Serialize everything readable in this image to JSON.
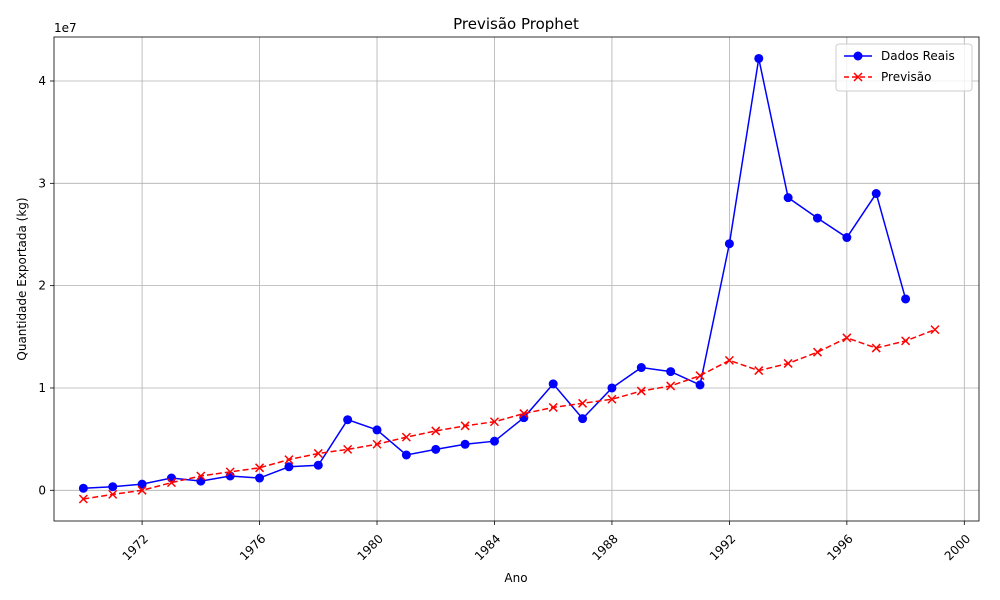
{
  "chart_data": {
    "type": "line",
    "title": "Previsão Prophet",
    "xlabel": "Ano",
    "ylabel": "Quantidade Exportada (kg)",
    "y_scale_label": "1e7",
    "x_ticks": [
      "1972",
      "1976",
      "1980",
      "1984",
      "1988",
      "1992",
      "1996",
      "2000"
    ],
    "y_ticks": [
      "0",
      "1",
      "2",
      "3",
      "4"
    ],
    "xlim": [
      1969.0,
      2000.5
    ],
    "ylim": [
      -3000000,
      44300000
    ],
    "grid": true,
    "legend_position": "top-right",
    "series": [
      {
        "name": "Dados Reais",
        "color": "#0000ff",
        "marker": "circle",
        "linestyle": "solid",
        "x": [
          1970,
          1971,
          1972,
          1973,
          1974,
          1975,
          1976,
          1977,
          1978,
          1979,
          1980,
          1981,
          1982,
          1983,
          1984,
          1985,
          1986,
          1987,
          1988,
          1989,
          1990,
          1991,
          1992,
          1993,
          1994,
          1995,
          1996,
          1997,
          1998
        ],
        "values": [
          200000,
          350000,
          600000,
          1200000,
          900000,
          1400000,
          1200000,
          2300000,
          2450000,
          6900000,
          5900000,
          3450000,
          4000000,
          4500000,
          4800000,
          7100000,
          10400000,
          7000000,
          10000000,
          12000000,
          11600000,
          10300000,
          24100000,
          42200000,
          28600000,
          26600000,
          24700000,
          29000000,
          18700000
        ]
      },
      {
        "name": "Previsão",
        "color": "#ff0000",
        "marker": "x",
        "linestyle": "dashed",
        "x": [
          1970,
          1971,
          1972,
          1973,
          1974,
          1975,
          1976,
          1977,
          1978,
          1979,
          1980,
          1981,
          1982,
          1983,
          1984,
          1985,
          1986,
          1987,
          1988,
          1989,
          1990,
          1991,
          1992,
          1993,
          1994,
          1995,
          1996,
          1997,
          1998,
          1999
        ],
        "values": [
          -850000,
          -400000,
          0,
          750000,
          1400000,
          1800000,
          2200000,
          3000000,
          3600000,
          4000000,
          4500000,
          5200000,
          5800000,
          6300000,
          6700000,
          7500000,
          8100000,
          8500000,
          8900000,
          9700000,
          10200000,
          11200000,
          12700000,
          11700000,
          12400000,
          13500000,
          14900000,
          13900000,
          14600000,
          15700000
        ]
      }
    ]
  }
}
